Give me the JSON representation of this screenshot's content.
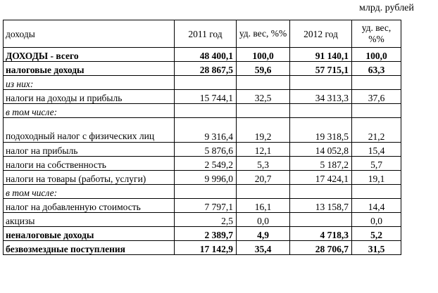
{
  "unit_label": "млрд. рублей",
  "header": {
    "label": "доходы",
    "y2011": "2011 год",
    "w2011": "уд. вес, %%",
    "y2012": "2012 год",
    "w2012": "уд. вес, %%"
  },
  "rows": [
    {
      "label": "ДОХОДЫ - всего",
      "v2011": "48 400,1",
      "w2011": "100,0",
      "v2012": "91 140,1",
      "w2012": "100,0"
    },
    {
      "label": "налоговые доходы",
      "v2011": "28 867,5",
      "w2011": "59,6",
      "v2012": "57 715,1",
      "w2012": "63,3"
    },
    {
      "label": "из них:",
      "v2011": "",
      "w2011": "",
      "v2012": "",
      "w2012": ""
    },
    {
      "label": "налоги на доходы и прибыль",
      "v2011": "15 744,1",
      "w2011": "32,5",
      "v2012": "34 313,3",
      "w2012": "37,6"
    },
    {
      "label": "в том числе:",
      "v2011": "",
      "w2011": "",
      "v2012": "",
      "w2012": ""
    },
    {
      "label": "подоходный налог с физических лиц",
      "v2011": "9 316,4",
      "w2011": "19,2",
      "v2012": "19 318,5",
      "w2012": "21,2"
    },
    {
      "label": "налог на прибыль",
      "v2011": "5 876,6",
      "w2011": "12,1",
      "v2012": "14 052,8",
      "w2012": "15,4"
    },
    {
      "label": "налоги на собственность",
      "v2011": "2 549,2",
      "w2011": "5,3",
      "v2012": "5 187,2",
      "w2012": "5,7"
    },
    {
      "label": "налоги на товары (работы, услуги)",
      "v2011": "9 996,0",
      "w2011": "20,7",
      "v2012": "17 424,1",
      "w2012": "19,1"
    },
    {
      "label": "в том числе:",
      "v2011": "",
      "w2011": "",
      "v2012": "",
      "w2012": ""
    },
    {
      "label": "налог на добавленную стоимость",
      "v2011": "7 797,1",
      "w2011": "16,1",
      "v2012": "13 158,7",
      "w2012": "14,4"
    },
    {
      "label": "акцизы",
      "v2011": "2,5",
      "w2011": "0,0",
      "v2012": "",
      "w2012": "0,0"
    },
    {
      "label": "неналоговые доходы",
      "v2011": "2 389,7",
      "w2011": "4,9",
      "v2012": "4 718,3",
      "w2012": "5,2"
    },
    {
      "label": "безвозмездные поступления",
      "v2011": "17 142,9",
      "w2011": "35,4",
      "v2012": "28 706,7",
      "w2012": "31,5"
    }
  ]
}
